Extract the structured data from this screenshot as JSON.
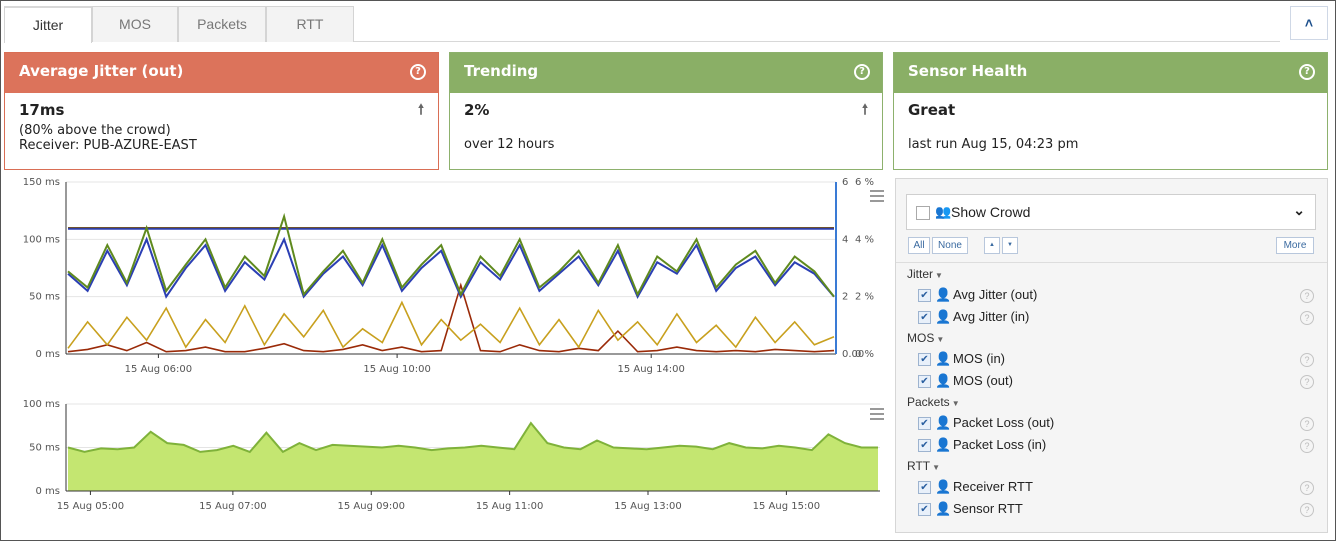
{
  "tabs": [
    "Jitter",
    "MOS",
    "Packets",
    "RTT"
  ],
  "collapse_icon": "chevron-up-icon",
  "cards": {
    "jitter": {
      "title": "Average Jitter (out)",
      "value": "17ms",
      "line1": "(80% above the crowd)",
      "line2": "Receiver: PUB-AZURE-EAST",
      "trend_icon": "arrow-up-icon"
    },
    "trending": {
      "title": "Trending",
      "value": "2%",
      "line1": "over 12 hours",
      "trend_icon": "arrow-up-icon"
    },
    "health": {
      "title": "Sensor Health",
      "value": "Great",
      "line1": "last run Aug 15, 04:23 pm"
    }
  },
  "colors": {
    "red_header": "#dc735b",
    "green_header": "#8aaf66",
    "blue_line": "#2b3fb4",
    "olive_line": "#5f8a1e",
    "gold_line": "#c8a01e",
    "darkred_line": "#9a2a08",
    "area_fill": "#c4e671"
  },
  "chart_data": [
    {
      "type": "line",
      "y_left_ticks": [
        "150 ms",
        "100 ms",
        "50 ms",
        "0 ms"
      ],
      "y_right_ticks_a": [
        "6",
        "4",
        "2",
        "0.00"
      ],
      "y_right_ticks_b": [
        "6 %",
        "4 %",
        "2 %",
        "0 %"
      ],
      "x_ticks": [
        "15 Aug 06:00",
        "15 Aug 10:00",
        "15 Aug 14:00"
      ],
      "ylim": [
        0,
        150
      ],
      "series": [
        {
          "name": "Avg Jitter (out)",
          "values": [
            2,
            4,
            8,
            3,
            10,
            2,
            3,
            6,
            2,
            2,
            5,
            9,
            3,
            2,
            4,
            8,
            3,
            6,
            2,
            3,
            60,
            3,
            2,
            8,
            3,
            2,
            5,
            3,
            20,
            2,
            3,
            6,
            3,
            2,
            3,
            2,
            4,
            3,
            2,
            3
          ]
        },
        {
          "name": "Avg Jitter (in)",
          "values": [
            5,
            28,
            8,
            32,
            12,
            40,
            6,
            30,
            10,
            42,
            8,
            35,
            15,
            38,
            6,
            22,
            10,
            45,
            8,
            30,
            12,
            26,
            10,
            40,
            8,
            30,
            6,
            38,
            12,
            28,
            8,
            35,
            10,
            25,
            6,
            32,
            10,
            28,
            8,
            15
          ]
        },
        {
          "name": "MOS (in)",
          "values": [
            4.4,
            4.4,
            4.4,
            4.4,
            4.4,
            4.4,
            4.4,
            4.4,
            4.4,
            4.4,
            4.4,
            4.4,
            4.4,
            4.4,
            4.4,
            4.4,
            4.4,
            4.4,
            4.4,
            4.4,
            4.4,
            4.4,
            4.4,
            4.4,
            4.4,
            4.4,
            4.4,
            4.4,
            4.4,
            4.4,
            4.4,
            4.4,
            4.4,
            4.4,
            4.4,
            4.4,
            4.4,
            4.4,
            4.4,
            4.4
          ]
        },
        {
          "name": "MOS (out)",
          "values": [
            4.4,
            4.4,
            4.4,
            4.4,
            4.4,
            4.4,
            4.4,
            4.4,
            4.4,
            4.4,
            4.4,
            4.4,
            4.4,
            4.4,
            4.4,
            4.4,
            4.4,
            4.4,
            4.4,
            4.4,
            4.4,
            4.4,
            4.4,
            4.4,
            4.4,
            4.4,
            4.4,
            4.4,
            4.4,
            4.4,
            4.4,
            4.4,
            4.4,
            4.4,
            4.4,
            4.4,
            4.4,
            4.4,
            4.4,
            4.4
          ]
        },
        {
          "name": "Receiver RTT",
          "values": [
            70,
            55,
            90,
            60,
            100,
            50,
            75,
            95,
            55,
            80,
            65,
            100,
            50,
            70,
            85,
            60,
            95,
            55,
            75,
            90,
            50,
            80,
            65,
            95,
            55,
            70,
            85,
            60,
            90,
            50,
            80,
            70,
            95,
            55,
            75,
            85,
            60,
            80,
            70,
            50
          ]
        },
        {
          "name": "Sensor RTT",
          "values": [
            72,
            58,
            95,
            62,
            110,
            55,
            78,
            100,
            58,
            85,
            68,
            120,
            52,
            72,
            90,
            62,
            100,
            58,
            78,
            95,
            52,
            85,
            68,
            100,
            58,
            72,
            90,
            62,
            95,
            52,
            85,
            72,
            100,
            58,
            78,
            90,
            62,
            85,
            72,
            50
          ]
        }
      ]
    },
    {
      "type": "area",
      "y_ticks": [
        "100 ms",
        "50 ms",
        "0 ms"
      ],
      "x_ticks": [
        "15 Aug 05:00",
        "15 Aug 07:00",
        "15 Aug 09:00",
        "15 Aug 11:00",
        "15 Aug 13:00",
        "15 Aug 15:00"
      ],
      "ylim": [
        0,
        100
      ],
      "values": [
        50,
        45,
        49,
        48,
        50,
        68,
        55,
        53,
        45,
        47,
        52,
        45,
        67,
        45,
        55,
        47,
        53,
        52,
        51,
        50,
        52,
        50,
        47,
        49,
        50,
        52,
        50,
        48,
        78,
        55,
        50,
        48,
        58,
        50,
        49,
        48,
        50,
        52,
        51,
        48,
        55,
        50,
        49,
        52,
        50,
        47,
        65,
        55,
        50,
        50
      ]
    }
  ],
  "panel": {
    "show_crowd": "Show Crowd",
    "btn_all": "All",
    "btn_none": "None",
    "btn_up": "▲",
    "btn_down": "▼",
    "btn_more": "More",
    "groups": [
      {
        "label": "Jitter",
        "items": [
          {
            "label": "Avg Jitter (out)",
            "color": "#a3260c"
          },
          {
            "label": "Avg Jitter (in)",
            "color": "#c8a01e"
          }
        ]
      },
      {
        "label": "MOS",
        "items": [
          {
            "label": "MOS (in)",
            "color": "#5a3a10"
          },
          {
            "label": "MOS (out)",
            "color": "#2b3fb4"
          }
        ]
      },
      {
        "label": "Packets",
        "items": [
          {
            "label": "Packet Loss (out)",
            "color": "#a3260c"
          },
          {
            "label": "Packet Loss (in)",
            "color": "#c8a01e"
          }
        ]
      },
      {
        "label": "RTT",
        "items": [
          {
            "label": "Receiver RTT",
            "color": "#2b3fb4"
          },
          {
            "label": "Sensor RTT",
            "color": "#6a9a20"
          }
        ]
      }
    ]
  }
}
